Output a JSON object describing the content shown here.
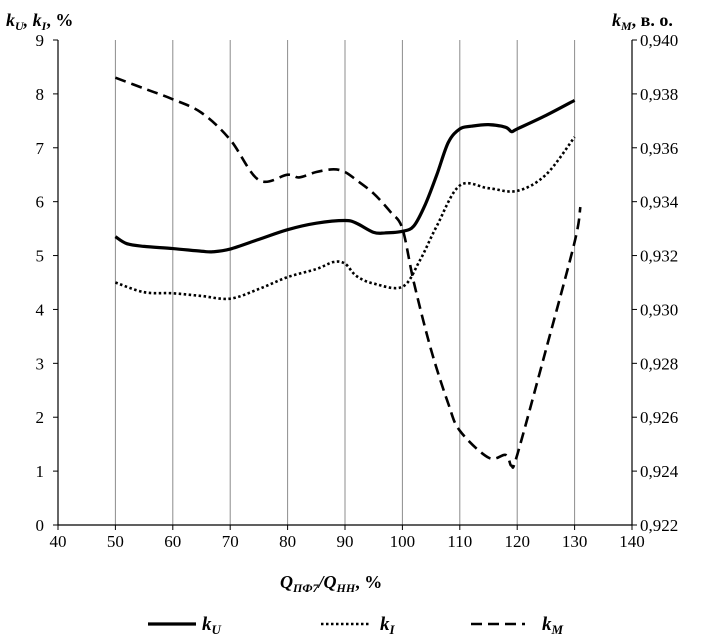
{
  "chart_data": {
    "type": "line",
    "title": "",
    "x_label": "Q_ПФ7/Q_НН, %",
    "y_left_label": "k_U, k_I, %",
    "y_right_label": "k_M, в. о.",
    "xlim": [
      40,
      140
    ],
    "ylim_left": [
      0,
      9
    ],
    "ylim_right": [
      0.922,
      0.94
    ],
    "x_ticks": [
      "40",
      "50",
      "60",
      "70",
      "80",
      "90",
      "100",
      "110",
      "120",
      "130",
      "140"
    ],
    "y_left_ticks": [
      "0",
      "1",
      "2",
      "3",
      "4",
      "5",
      "6",
      "7",
      "8",
      "9"
    ],
    "y_right_ticks": [
      "0,922",
      "0,924",
      "0,926",
      "0,928",
      "0,930",
      "0,932",
      "0,934",
      "0,936",
      "0,938",
      "0,940"
    ],
    "grid": "vertical",
    "legend_position": "bottom",
    "series": [
      {
        "name": "k_U",
        "axis": "left",
        "style": "solid",
        "x": [
          50,
          52,
          55,
          60,
          65,
          67,
          70,
          75,
          80,
          85,
          90,
          92,
          95,
          97,
          100,
          102,
          104,
          106,
          108,
          110,
          112,
          115,
          118,
          119,
          120,
          125,
          130
        ],
        "y": [
          5.35,
          5.22,
          5.17,
          5.13,
          5.08,
          5.07,
          5.12,
          5.3,
          5.48,
          5.6,
          5.65,
          5.6,
          5.43,
          5.42,
          5.45,
          5.55,
          5.95,
          6.5,
          7.1,
          7.35,
          7.4,
          7.43,
          7.38,
          7.3,
          7.35,
          7.6,
          7.88
        ]
      },
      {
        "name": "k_I",
        "axis": "left",
        "style": "dotted",
        "x": [
          50,
          55,
          60,
          65,
          70,
          75,
          80,
          85,
          88,
          90,
          92,
          95,
          100,
          103,
          106,
          110,
          115,
          120,
          125,
          130
        ],
        "y": [
          4.5,
          4.32,
          4.3,
          4.25,
          4.2,
          4.38,
          4.6,
          4.75,
          4.88,
          4.85,
          4.62,
          4.48,
          4.42,
          4.9,
          5.55,
          6.3,
          6.25,
          6.2,
          6.5,
          7.2
        ]
      },
      {
        "name": "k_M",
        "axis": "right",
        "style": "dashed",
        "x": [
          50,
          55,
          60,
          65,
          70,
          75,
          80,
          82,
          85,
          88,
          90,
          92,
          95,
          98,
          100,
          102,
          105,
          108,
          110,
          115,
          118,
          119,
          120,
          125,
          130,
          131
        ],
        "y": [
          0.9386,
          0.9382,
          0.9378,
          0.9373,
          0.9363,
          0.9348,
          0.935,
          0.9349,
          0.9351,
          0.9352,
          0.9351,
          0.9348,
          0.9343,
          0.9336,
          0.933,
          0.931,
          0.9285,
          0.9265,
          0.9255,
          0.9245,
          0.9246,
          0.9242,
          0.9246,
          0.9285,
          0.9325,
          0.9338
        ]
      }
    ],
    "legend": [
      {
        "label": "k_U",
        "style": "solid"
      },
      {
        "label": "k_I",
        "style": "dotted"
      },
      {
        "label": "k_M",
        "style": "dashed"
      }
    ]
  }
}
